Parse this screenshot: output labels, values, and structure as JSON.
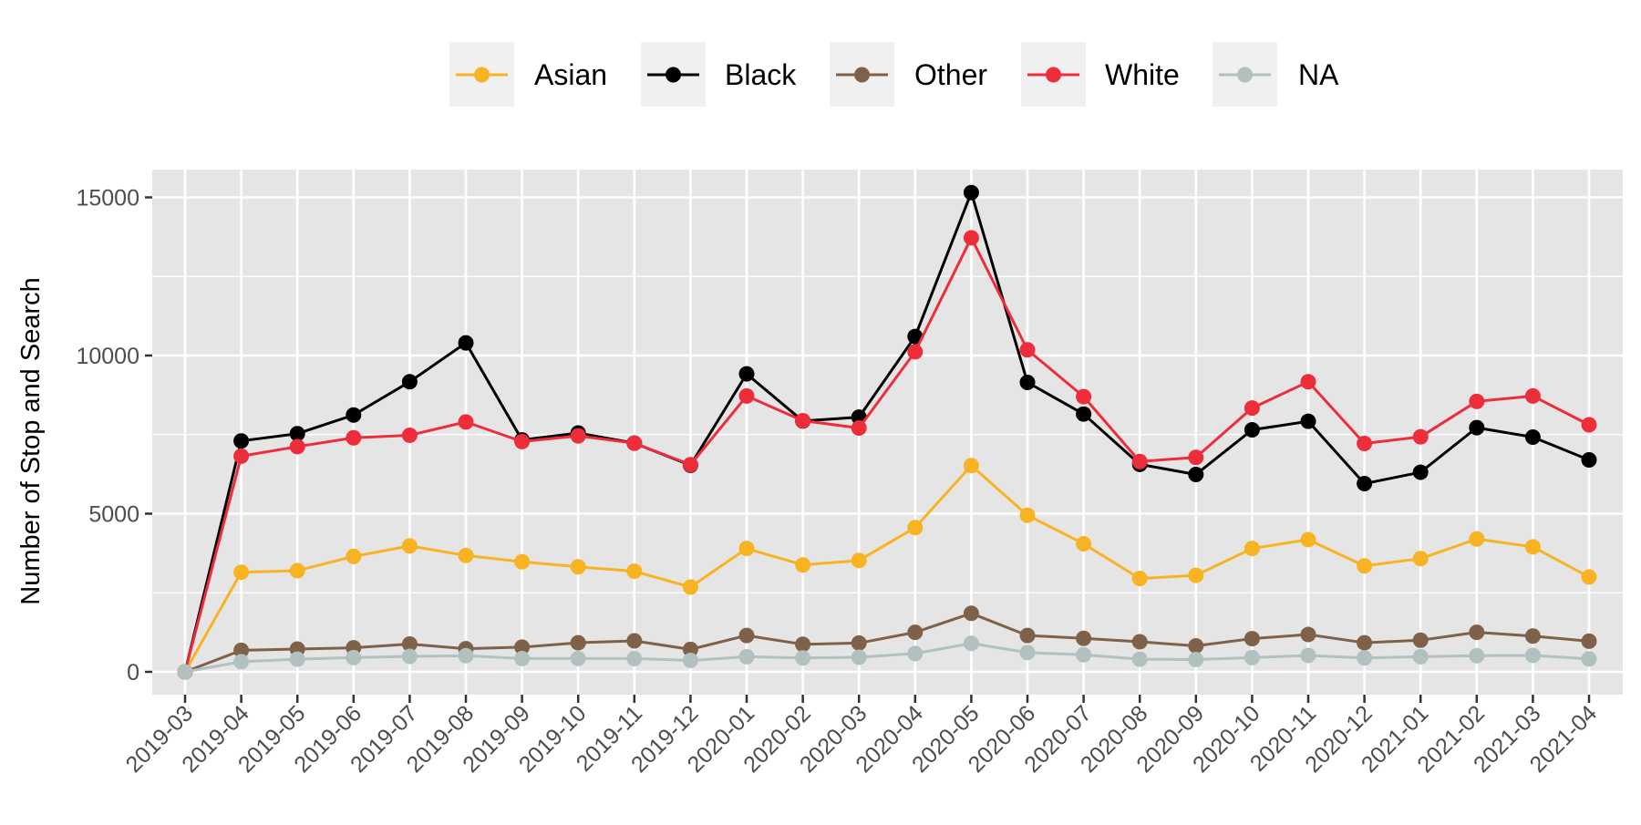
{
  "chart_data": {
    "type": "line",
    "title": "",
    "xlabel": "",
    "ylabel": "Number of Stop and Search",
    "ylim": [
      -750,
      15900
    ],
    "yticks": [
      0,
      5000,
      10000,
      15000
    ],
    "grid": true,
    "legend_position": "top",
    "categories": [
      "2019-03",
      "2019-04",
      "2019-05",
      "2019-06",
      "2019-07",
      "2019-08",
      "2019-09",
      "2019-10",
      "2019-11",
      "2019-12",
      "2020-01",
      "2020-02",
      "2020-03",
      "2020-04",
      "2020-05",
      "2020-06",
      "2020-07",
      "2020-08",
      "2020-09",
      "2020-10",
      "2020-11",
      "2020-12",
      "2021-01",
      "2021-02",
      "2021-03",
      "2021-04"
    ],
    "series": [
      {
        "name": "Asian",
        "color": "#F8B323",
        "values": [
          0,
          3150,
          3200,
          3650,
          3980,
          3680,
          3480,
          3320,
          3180,
          2680,
          3900,
          3380,
          3520,
          4560,
          6520,
          4950,
          4050,
          2950,
          3050,
          3900,
          4180,
          3350,
          3580,
          4200,
          3950,
          3000
        ]
      },
      {
        "name": "Black",
        "color": "#000000",
        "values": [
          0,
          7300,
          7530,
          8120,
          9170,
          10400,
          7330,
          7550,
          7230,
          6530,
          9420,
          7930,
          8050,
          10600,
          15150,
          9150,
          8150,
          6560,
          6240,
          7650,
          7920,
          5950,
          6310,
          7720,
          7420,
          6700
        ]
      },
      {
        "name": "Other",
        "color": "#7E6148",
        "values": [
          0,
          680,
          720,
          760,
          880,
          730,
          780,
          920,
          980,
          710,
          1150,
          870,
          910,
          1250,
          1850,
          1150,
          1060,
          950,
          820,
          1050,
          1180,
          920,
          1000,
          1250,
          1130,
          970
        ]
      },
      {
        "name": "White",
        "color": "#EE2D3A",
        "values": [
          0,
          6820,
          7120,
          7400,
          7480,
          7900,
          7280,
          7460,
          7230,
          6550,
          8720,
          7940,
          7710,
          10120,
          13720,
          10180,
          8700,
          6650,
          6780,
          8340,
          9170,
          7220,
          7430,
          8550,
          8720,
          7810
        ]
      },
      {
        "name": "NA",
        "color": "#B1C1C0",
        "values": [
          0,
          320,
          400,
          450,
          490,
          510,
          420,
          420,
          420,
          360,
          480,
          440,
          460,
          580,
          900,
          610,
          540,
          400,
          390,
          450,
          520,
          440,
          480,
          510,
          520,
          410
        ]
      }
    ]
  }
}
